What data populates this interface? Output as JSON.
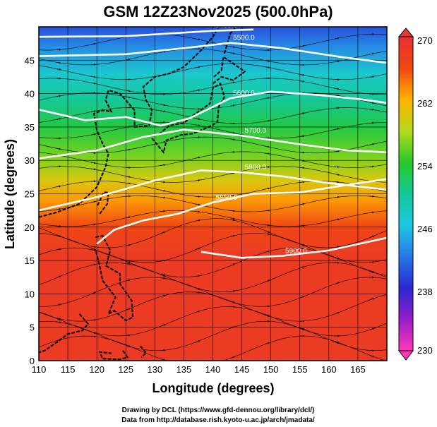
{
  "chart_data": {
    "type": "heatmap",
    "title": "GSM 12Z23Nov2025 (500.0hPa)",
    "xlabel": "Longitude (degrees)",
    "ylabel": "Latitude (degrees)",
    "xlim": [
      110,
      170
    ],
    "ylim": [
      0,
      50
    ],
    "x_ticks": [
      110,
      115,
      120,
      125,
      130,
      135,
      140,
      145,
      150,
      155,
      160,
      165
    ],
    "y_ticks": [
      0,
      5,
      10,
      15,
      20,
      25,
      30,
      35,
      40,
      45
    ],
    "grid": true,
    "shading": {
      "variable": "temperature (K)",
      "colorbar_range": [
        230,
        270
      ],
      "colorbar_ticks": [
        230,
        238,
        246,
        254,
        262,
        270
      ],
      "colorbar_extend": "both",
      "approx_profile": [
        {
          "lat": 0,
          "value": 268
        },
        {
          "lat": 10,
          "value": 268
        },
        {
          "lat": 16,
          "value": 268
        },
        {
          "lat": 20,
          "value": 266
        },
        {
          "lat": 24,
          "value": 263
        },
        {
          "lat": 27,
          "value": 260
        },
        {
          "lat": 31,
          "value": 256
        },
        {
          "lat": 35,
          "value": 253
        },
        {
          "lat": 39,
          "value": 250
        },
        {
          "lat": 43,
          "value": 247
        },
        {
          "lat": 47,
          "value": 243
        },
        {
          "lat": 50,
          "value": 240
        }
      ]
    },
    "contours": [
      {
        "label": "5400.0",
        "points": [
          [
            110,
            48.5
          ],
          [
            125,
            48.6
          ],
          [
            140,
            49.4
          ],
          [
            147,
            49.6
          ]
        ]
      },
      {
        "label": "5500.0",
        "points": [
          [
            110,
            45.6
          ],
          [
            125,
            45.9
          ],
          [
            135,
            46.8
          ],
          [
            143,
            47.6
          ],
          [
            152,
            46.8
          ],
          [
            162,
            45.5
          ],
          [
            170,
            44.6
          ]
        ]
      },
      {
        "label": "5600.0",
        "points": [
          [
            110,
            37.6
          ],
          [
            118,
            36.0
          ],
          [
            125,
            36.5
          ],
          [
            131,
            35.2
          ],
          [
            136,
            36.3
          ],
          [
            143,
            39.3
          ],
          [
            150,
            40.3
          ],
          [
            158,
            39.8
          ],
          [
            165,
            39.2
          ],
          [
            170,
            38.6
          ]
        ]
      },
      {
        "label": "5800.0",
        "points": [
          [
            110,
            22.5
          ],
          [
            120,
            24.5
          ],
          [
            130,
            27.0
          ],
          [
            138,
            28.5
          ],
          [
            145,
            28.2
          ],
          [
            152,
            27.6
          ],
          [
            160,
            26.6
          ],
          [
            170,
            25.6
          ]
        ]
      },
      {
        "label": "5700.0",
        "points": [
          [
            110,
            30.3
          ],
          [
            120,
            31.5
          ],
          [
            128,
            33.5
          ],
          [
            135,
            34.6
          ],
          [
            145,
            33.7
          ],
          [
            155,
            32.4
          ],
          [
            163,
            31.5
          ],
          [
            170,
            31.2
          ]
        ]
      },
      {
        "label": "5850.0",
        "points": [
          [
            120,
            17.5
          ],
          [
            123,
            19.6
          ],
          [
            128,
            21.0
          ],
          [
            134,
            22.0
          ],
          [
            140,
            23.7
          ],
          [
            147,
            25.0
          ],
          [
            155,
            25.2
          ],
          [
            163,
            26.3
          ],
          [
            170,
            27.2
          ]
        ]
      },
      {
        "label": "5900.0",
        "points": [
          [
            138,
            16.3
          ],
          [
            145,
            15.4
          ],
          [
            152,
            15.7
          ],
          [
            160,
            16.5
          ],
          [
            170,
            18.4
          ]
        ]
      }
    ],
    "colorbar_tick_labels": [
      "270",
      "262",
      "254",
      "246",
      "238",
      "230"
    ],
    "credits": [
      "Drawing by DCL (https://www.gfd-dennou.org/library/dcl/)",
      "Data from http://database.rish.kyoto-u.ac.jp/arch/jmadata/"
    ]
  }
}
